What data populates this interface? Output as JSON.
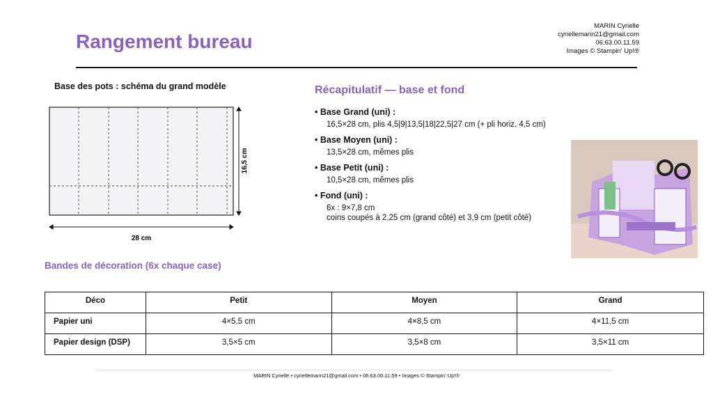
{
  "header": {
    "title": "Rangement bureau",
    "contact": [
      "MARIN Cyrielle",
      "cyriellemarin21@gmail.com",
      "06.63.00.11.59",
      "Images © Stampin' Up!®"
    ]
  },
  "diagram": {
    "title": "Base des pots : schéma du grand modèle",
    "height_label": "16,5 cm",
    "width_label": "28 cm"
  },
  "summary": {
    "title": "Récapitulatif — base et fond",
    "items": [
      {
        "label": "• Base Grand (uni) :",
        "lines": [
          "16,5×28 cm, plis 4,5|9|13,5|18|22,5|27 cm (+ pli horiz. 4,5 cm)"
        ]
      },
      {
        "label": "• Base Moyen (uni) :",
        "lines": [
          "13,5×28 cm, mêmes plis"
        ]
      },
      {
        "label": "• Base Petit (uni) :",
        "lines": [
          "10,5×28 cm, mêmes plis"
        ]
      },
      {
        "label": "• Fond (uni) :",
        "lines": [
          "6x : 9×7,8 cm",
          "coins coupés à 2,25 cm (grand côté) et 3,9 cm (petit côté)"
        ]
      }
    ]
  },
  "bands": {
    "title": "Bandes de décoration (6x chaque case)",
    "table": {
      "header": [
        "Déco",
        "Petit",
        "Moyen",
        "Grand"
      ],
      "rows": [
        [
          "Papier uni",
          "4×5,5 cm",
          "4×8,5 cm",
          "4×11,5 cm"
        ],
        [
          "Papier design (DSP)",
          "3,5×5 cm",
          "3,5×8 cm",
          "3,5×11 cm"
        ]
      ]
    }
  },
  "footer": "MARIN Cyrielle • cyriellemarin21@gmail.com • 06.63.00.11.59 • Images © Stampin' Up!®"
}
